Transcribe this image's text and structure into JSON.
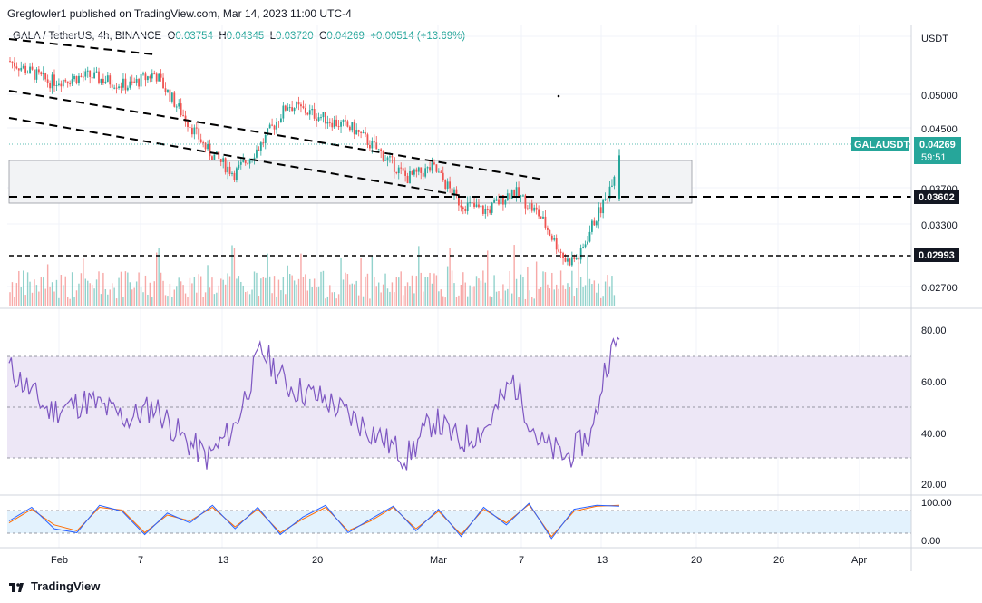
{
  "header": {
    "published": "Gregfowler1 published on TradingView.com, Mar 14, 2023 11:00 UTC-4"
  },
  "legend": {
    "symbol": "GALA / TetherUS, 4h, BINANCE",
    "o_label": "O",
    "o": "0.03754",
    "h_label": "H",
    "h": "0.04345",
    "l_label": "L",
    "l": "0.03720",
    "c_label": "C",
    "c": "0.04269",
    "change": "+0.00514 (+13.69%)"
  },
  "price_axis": {
    "currency": "USDT",
    "ticks": [
      "0.05000",
      "0.04500",
      "0.03700",
      "0.03300",
      "0.02700"
    ],
    "current_symbol": "GALAUSDT",
    "current_price": "0.04269",
    "countdown": "59:51",
    "level_high": "0.03602",
    "level_low": "0.02993"
  },
  "rsi_axis": {
    "ticks": [
      "80.00",
      "60.00",
      "40.00",
      "20.00"
    ]
  },
  "stoch_axis": {
    "ticks": [
      "100.00",
      "0.00"
    ]
  },
  "time_axis": {
    "labels": [
      "Feb",
      "7",
      "13",
      "20",
      "Mar",
      "7",
      "13",
      "20",
      "26",
      "Apr"
    ]
  },
  "footer": {
    "brand": "TradingView"
  },
  "colors": {
    "up": "#26a69a",
    "down": "#ef5350",
    "rsi": "#7e57c2",
    "rsi_band": "#ede7f6",
    "stoch_k": "#2962ff",
    "stoch_d": "#ff6d00",
    "stoch_band": "#e3f2fd"
  },
  "chart_data": {
    "type": "candlestick",
    "symbol": "GALA / TetherUS",
    "interval": "4h",
    "exchange": "BINANCE",
    "x_range": [
      "Jan 27, 2023",
      "Apr 3, 2023"
    ],
    "y_range": [
      0.0255,
      0.0535
    ],
    "price_path": [
      {
        "date": "2023-01-27",
        "close": 0.054
      },
      {
        "date": "2023-01-30",
        "close": 0.0515
      },
      {
        "date": "2023-02-02",
        "close": 0.0522
      },
      {
        "date": "2023-02-05",
        "close": 0.051
      },
      {
        "date": "2023-02-07",
        "close": 0.0525
      },
      {
        "date": "2023-02-09",
        "close": 0.0478
      },
      {
        "date": "2023-02-11",
        "close": 0.0432
      },
      {
        "date": "2023-02-13",
        "close": 0.0405
      },
      {
        "date": "2023-02-15",
        "close": 0.044
      },
      {
        "date": "2023-02-17",
        "close": 0.0488
      },
      {
        "date": "2023-02-20",
        "close": 0.047
      },
      {
        "date": "2023-02-22",
        "close": 0.0458
      },
      {
        "date": "2023-02-24",
        "close": 0.043
      },
      {
        "date": "2023-02-26",
        "close": 0.04
      },
      {
        "date": "2023-02-28",
        "close": 0.0412
      },
      {
        "date": "2023-03-02",
        "close": 0.037
      },
      {
        "date": "2023-03-04",
        "close": 0.036
      },
      {
        "date": "2023-03-06",
        "close": 0.0385
      },
      {
        "date": "2023-03-08",
        "close": 0.0355
      },
      {
        "date": "2023-03-10",
        "close": 0.03
      },
      {
        "date": "2023-03-11",
        "close": 0.0305
      },
      {
        "date": "2023-03-12",
        "close": 0.0345
      },
      {
        "date": "2023-03-13",
        "close": 0.0375
      },
      {
        "date": "2023-03-14",
        "close": 0.0427
      }
    ],
    "horizontal_levels": [
      0.03602,
      0.02993
    ],
    "annotations": [
      "GALAUSDT 0.04269 59:51",
      "0.03602",
      "0.02993"
    ],
    "rsi": {
      "upper": 70,
      "lower": 30,
      "middle": 50,
      "range": [
        15,
        85
      ],
      "points": [
        {
          "date": "2023-01-27",
          "value": 65
        },
        {
          "date": "2023-01-30",
          "value": 48
        },
        {
          "date": "2023-02-02",
          "value": 52
        },
        {
          "date": "2023-02-05",
          "value": 45
        },
        {
          "date": "2023-02-07",
          "value": 50
        },
        {
          "date": "2023-02-09",
          "value": 38
        },
        {
          "date": "2023-02-11",
          "value": 30
        },
        {
          "date": "2023-02-13",
          "value": 42
        },
        {
          "date": "2023-02-15",
          "value": 72
        },
        {
          "date": "2023-02-17",
          "value": 58
        },
        {
          "date": "2023-02-20",
          "value": 52
        },
        {
          "date": "2023-02-22",
          "value": 45
        },
        {
          "date": "2023-02-24",
          "value": 38
        },
        {
          "date": "2023-02-26",
          "value": 30
        },
        {
          "date": "2023-02-28",
          "value": 45
        },
        {
          "date": "2023-03-02",
          "value": 36
        },
        {
          "date": "2023-03-04",
          "value": 42
        },
        {
          "date": "2023-03-06",
          "value": 60
        },
        {
          "date": "2023-03-08",
          "value": 36
        },
        {
          "date": "2023-03-10",
          "value": 30
        },
        {
          "date": "2023-03-12",
          "value": 40
        },
        {
          "date": "2023-03-13",
          "value": 67
        },
        {
          "date": "2023-03-14",
          "value": 76
        }
      ]
    },
    "stochastic": {
      "upper": 80,
      "lower": 20,
      "range": [
        0,
        100
      ],
      "k_points": [
        50,
        85,
        30,
        20,
        90,
        75,
        15,
        70,
        45,
        90,
        30,
        85,
        15,
        60,
        90,
        20,
        55,
        88,
        25,
        80,
        10,
        85,
        40,
        95,
        5,
        80,
        90,
        88
      ],
      "d_points": [
        45,
        80,
        40,
        25,
        85,
        78,
        20,
        65,
        50,
        85,
        35,
        80,
        20,
        55,
        85,
        25,
        50,
        85,
        30,
        75,
        15,
        80,
        45,
        92,
        10,
        75,
        88,
        90
      ]
    }
  }
}
